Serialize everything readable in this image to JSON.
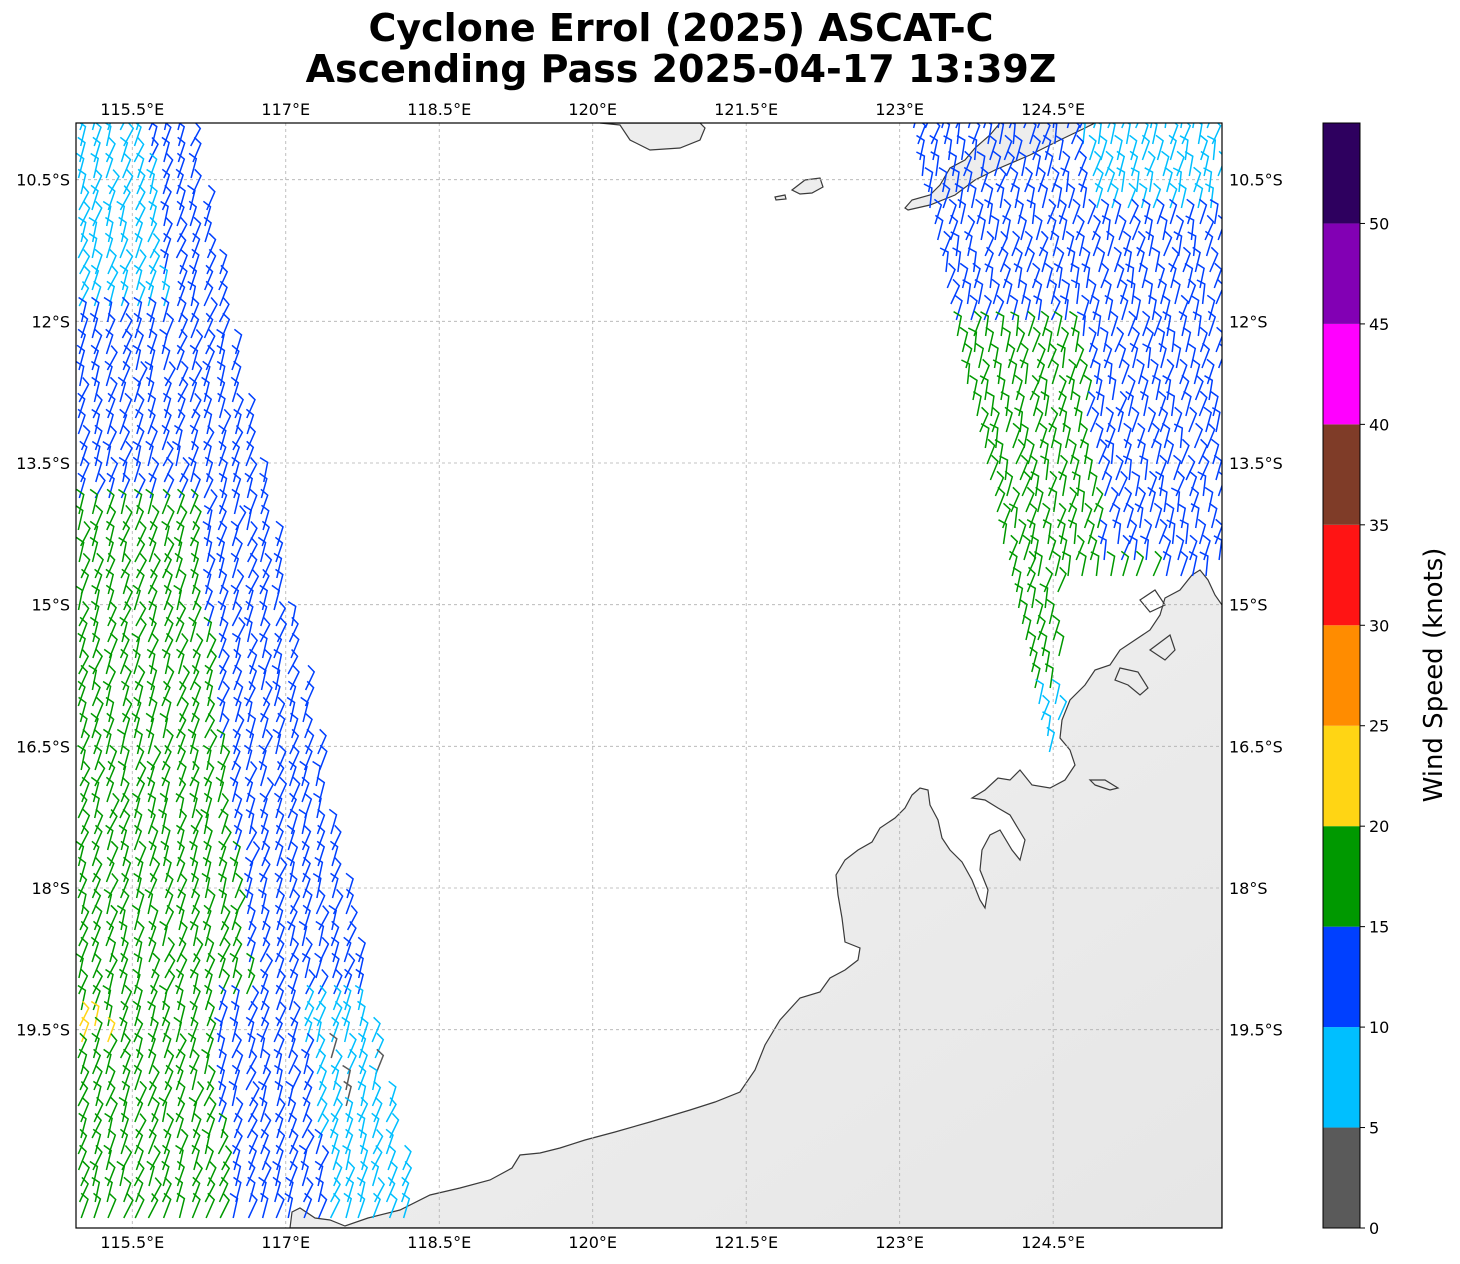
{
  "title": {
    "line1": "Cyclone Errol (2025) ASCAT-C",
    "line2": "Ascending Pass 2025-04-17 13:39Z"
  },
  "map": {
    "lon_range": [
      114.95,
      126.15
    ],
    "lat_range": [
      -21.6,
      -9.9
    ],
    "lon_ticks": [
      {
        "value": 115.5,
        "label": "115.5°E"
      },
      {
        "value": 117.0,
        "label": "117°E"
      },
      {
        "value": 118.5,
        "label": "118.5°E"
      },
      {
        "value": 120.0,
        "label": "120°E"
      },
      {
        "value": 121.5,
        "label": "121.5°E"
      },
      {
        "value": 123.0,
        "label": "123°E"
      },
      {
        "value": 124.5,
        "label": "124.5°E"
      }
    ],
    "lat_ticks": [
      {
        "value": -10.5,
        "label": "10.5°S"
      },
      {
        "value": -12.0,
        "label": "12°S"
      },
      {
        "value": -13.5,
        "label": "13.5°S"
      },
      {
        "value": -15.0,
        "label": "15°S"
      },
      {
        "value": -16.5,
        "label": "16.5°S"
      },
      {
        "value": -18.0,
        "label": "18°S"
      },
      {
        "value": -19.5,
        "label": "19.5°S"
      }
    ],
    "gridlines": true,
    "land_color": "#ececec",
    "coast_color": "#3a3a3a",
    "swaths": [
      "west",
      "east"
    ]
  },
  "colorbar": {
    "label": "Wind Speed (knots)",
    "ticks": [
      0,
      5,
      10,
      15,
      20,
      25,
      30,
      35,
      40,
      45,
      50
    ],
    "bins": [
      {
        "min": 0,
        "max": 5,
        "color": "#5a5a5a"
      },
      {
        "min": 5,
        "max": 10,
        "color": "#00bfff"
      },
      {
        "min": 10,
        "max": 15,
        "color": "#0040ff"
      },
      {
        "min": 15,
        "max": 20,
        "color": "#009900"
      },
      {
        "min": 20,
        "max": 25,
        "color": "#ffd514"
      },
      {
        "min": 25,
        "max": 30,
        "color": "#ff8c00"
      },
      {
        "min": 30,
        "max": 35,
        "color": "#ff1414"
      },
      {
        "min": 35,
        "max": 40,
        "color": "#7f3c28"
      },
      {
        "min": 40,
        "max": 45,
        "color": "#ff00ff"
      },
      {
        "min": 45,
        "max": 50,
        "color": "#8200b4"
      },
      {
        "min": 50,
        "max": 55,
        "color": "#2e005f"
      }
    ]
  }
}
